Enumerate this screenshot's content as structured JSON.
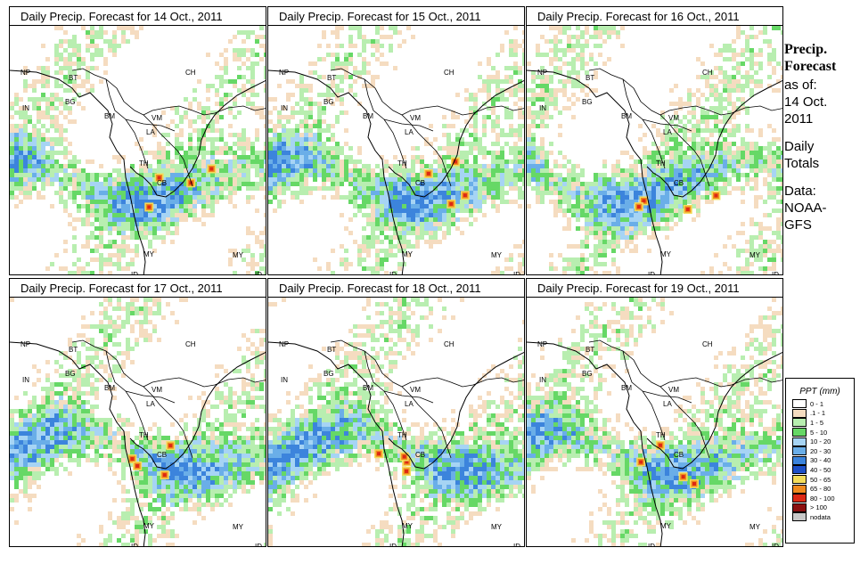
{
  "panels": [
    {
      "title": "Daily Precip. Forecast for  14 Oct., 2011",
      "seed": 11
    },
    {
      "title": "Daily Precip. Forecast for  15 Oct., 2011",
      "seed": 23
    },
    {
      "title": "Daily Precip. Forecast for  16 Oct., 2011",
      "seed": 37
    },
    {
      "title": "Daily Precip. Forecast for  17 Oct., 2011",
      "seed": 41
    },
    {
      "title": "Daily Precip. Forecast for  18 Oct., 2011",
      "seed": 53
    },
    {
      "title": "Daily Precip. Forecast for  19 Oct., 2011",
      "seed": 67
    }
  ],
  "country_labels": [
    "NP",
    "BT",
    "BG",
    "IN",
    "CH",
    "BM",
    "VM",
    "LA",
    "TH",
    "CB",
    "MY",
    "ID",
    "MY",
    "ID"
  ],
  "sidebar": {
    "heading_line1": "Precip.",
    "heading_line2": "Forecast",
    "as_of_label": "as of:",
    "date_line1": "14 Oct.",
    "date_line2": "2011",
    "totals_line1": "Daily",
    "totals_line2": "Totals",
    "data_line1": "Data:",
    "data_line2": "NOAA-",
    "data_line3": "GFS"
  },
  "legend": {
    "title": "PPT (mm)",
    "items": [
      {
        "label": "0 - 1",
        "color": "#ffffff"
      },
      {
        "label": ".1 - 1",
        "color": "#f5dcc0"
      },
      {
        "label": "1 - 5",
        "color": "#b8eeb0"
      },
      {
        "label": "5 - 10",
        "color": "#66d866"
      },
      {
        "label": "10 - 20",
        "color": "#a6d4f4"
      },
      {
        "label": "20 - 30",
        "color": "#6aaee8"
      },
      {
        "label": "30 - 40",
        "color": "#3c84dc"
      },
      {
        "label": "40 - 50",
        "color": "#1e50c8"
      },
      {
        "label": "50 - 65",
        "color": "#f4dc5a"
      },
      {
        "label": "65 - 80",
        "color": "#f08a1e"
      },
      {
        "label": "80 - 100",
        "color": "#dc2814"
      },
      {
        "label": "> 100",
        "color": "#8c1010"
      },
      {
        "label": "nodata",
        "color": "#c8c8c8"
      }
    ]
  }
}
